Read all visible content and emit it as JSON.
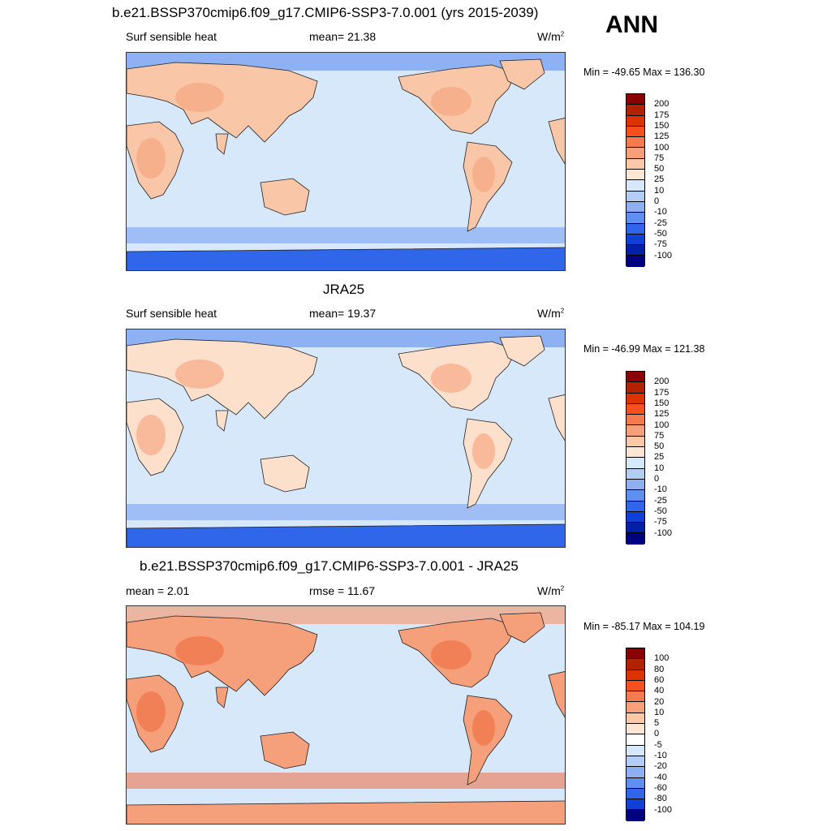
{
  "header": {
    "top_title": "b.e21.BSSP370cmip6.f09_g17.CMIP6-SSP3-7.0.001 (yrs 2015-2039)",
    "season": "ANN"
  },
  "panels": [
    {
      "title": "b.e21.BSSP370cmip6.f09_g17.CMIP6-SSP3-7.0.001 (yrs 2015-2039)",
      "left_label": "Surf sensible heat",
      "center_label": "mean=  21.38",
      "units": "W/m",
      "units_exp": "2",
      "minmax": "Min = -49.65 Max = 136.30",
      "colorbar": {
        "levels": [
          "200",
          "175",
          "150",
          "125",
          "100",
          "75",
          "50",
          "25",
          "10",
          "0",
          "-10",
          "-25",
          "-50",
          "-75",
          "-100"
        ],
        "colors": [
          "#8b0000",
          "#b22200",
          "#dd3300",
          "#f5501e",
          "#f57a50",
          "#f5a07a",
          "#fcc8a8",
          "#fde6d4",
          "#d6e8fb",
          "#b4cdf5",
          "#8fb0f0",
          "#5f8ff0",
          "#2f66ea",
          "#1040d8",
          "#0020a8",
          "#000080"
        ]
      },
      "map_colors": {
        "ocean": "#d8e8fb",
        "land": "#f9c7a8",
        "hot": "#f5a07a",
        "cold": "#6f9af0",
        "polar": "#2f66ea"
      }
    },
    {
      "title": "JRA25",
      "left_label": "Surf sensible heat",
      "center_label": "mean=  19.37",
      "units": "W/m",
      "units_exp": "2",
      "minmax": "Min = -46.99 Max = 121.38",
      "colorbar": {
        "levels": [
          "200",
          "175",
          "150",
          "125",
          "100",
          "75",
          "50",
          "25",
          "10",
          "0",
          "-10",
          "-25",
          "-50",
          "-75",
          "-100"
        ],
        "colors": [
          "#8b0000",
          "#b22200",
          "#dd3300",
          "#f5501e",
          "#f57a50",
          "#f5a07a",
          "#fcc8a8",
          "#fde6d4",
          "#d6e8fb",
          "#b4cdf5",
          "#8fb0f0",
          "#5f8ff0",
          "#2f66ea",
          "#1040d8",
          "#0020a8",
          "#000080"
        ]
      },
      "map_colors": {
        "ocean": "#d8e8fb",
        "land": "#fde0cc",
        "hot": "#f5a07a",
        "cold": "#6f9af0",
        "polar": "#2f66ea"
      }
    },
    {
      "title": "b.e21.BSSP370cmip6.f09_g17.CMIP6-SSP3-7.0.001 - JRA25",
      "left_label": "mean =   2.01",
      "center_label": "rmse =  11.67",
      "units": "W/m",
      "units_exp": "2",
      "minmax": "Min = -85.17 Max = 104.19",
      "colorbar": {
        "levels": [
          "100",
          "80",
          "60",
          "40",
          "20",
          "10",
          "5",
          "0",
          "-5",
          "-10",
          "-20",
          "-40",
          "-60",
          "-80",
          "-100"
        ],
        "colors": [
          "#8b0000",
          "#b22200",
          "#dd3300",
          "#f5501e",
          "#f57a50",
          "#f5a07a",
          "#fcc8a8",
          "#fde6d4",
          "#ffffff",
          "#d6e8fb",
          "#b4cdf5",
          "#8fb0f0",
          "#5f8ff0",
          "#2f66ea",
          "#1040d8",
          "#000080"
        ]
      },
      "map_colors": {
        "ocean": "#d8e8fb",
        "land": "#f5a07a",
        "hot": "#f06a40",
        "cold": "#5f8ff0",
        "polar": "#f5a07a"
      }
    }
  ]
}
